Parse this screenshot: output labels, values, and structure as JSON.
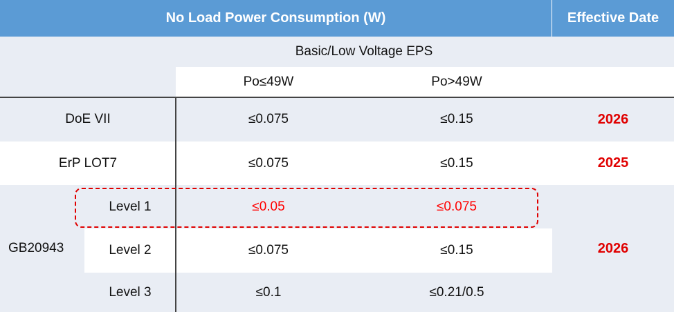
{
  "header": {
    "title": "No Load Power Consumption (W)",
    "effective_date": "Effective Date"
  },
  "subheader": {
    "group": "Basic/Low Voltage EPS",
    "columns": [
      "Po≤49W",
      "Po>49W"
    ]
  },
  "rows": [
    {
      "name": "DoE VII",
      "values": [
        "≤0.075",
        "≤0.15"
      ],
      "date": "2026"
    },
    {
      "name": "ErP LOT7",
      "values": [
        "≤0.075",
        "≤0.15"
      ],
      "date": "2025"
    }
  ],
  "group": {
    "name": "GB20943",
    "date": "2026",
    "levels": [
      {
        "name": "Level 1",
        "values": [
          "≤0.05",
          "≤0.075"
        ]
      },
      {
        "name": "Level 2",
        "values": [
          "≤0.075",
          "≤0.15"
        ]
      },
      {
        "name": "Level 3",
        "values": [
          "≤0.1",
          "≤0.21/0.5"
        ]
      }
    ]
  }
}
